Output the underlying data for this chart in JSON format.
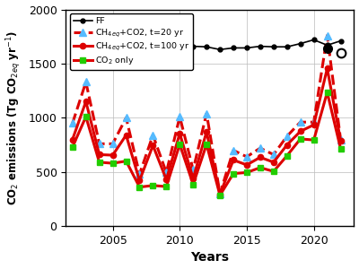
{
  "years": [
    2002,
    2003,
    2004,
    2005,
    2006,
    2007,
    2008,
    2009,
    2010,
    2011,
    2012,
    2013,
    2014,
    2015,
    2016,
    2017,
    2018,
    2019,
    2020,
    2021,
    2022
  ],
  "FF": [
    1720,
    1760,
    1690,
    1670,
    1575,
    1595,
    1630,
    1650,
    1680,
    1660,
    1655,
    1630,
    1645,
    1645,
    1660,
    1655,
    1655,
    1685,
    1720,
    1670,
    1710
  ],
  "CH4_t20": [
    950,
    1330,
    760,
    760,
    1000,
    480,
    840,
    495,
    1010,
    520,
    1040,
    300,
    700,
    640,
    720,
    660,
    830,
    960,
    960,
    1760,
    800
  ],
  "CH4_t100": [
    800,
    1150,
    660,
    655,
    840,
    420,
    745,
    430,
    855,
    440,
    870,
    295,
    610,
    565,
    635,
    590,
    750,
    875,
    935,
    1455,
    790
  ],
  "CO2_only": [
    730,
    1010,
    590,
    580,
    600,
    360,
    375,
    365,
    755,
    385,
    755,
    285,
    485,
    495,
    540,
    505,
    650,
    805,
    795,
    1235,
    715
  ],
  "FF_open_circle_year": 2022,
  "FF_open_circle_value": 1600,
  "FF_closed_circle_year": 2021,
  "FF_closed_circle_value": 1640,
  "xlabel": "Years",
  "ylabel": "CO$_2$ emissions (Tg CO$_{2eq}$ yr$^{-1}$)",
  "ylim": [
    0,
    2000
  ],
  "xlim": [
    2001.5,
    2023.0
  ],
  "yticks": [
    0,
    500,
    1000,
    1500,
    2000
  ],
  "xticks": [
    2005,
    2010,
    2015,
    2020
  ],
  "legend_FF": "FF",
  "legend_t20": "CH$_{4eq}$+CO2, t=20 yr",
  "legend_t100": "CH$_{4eq}$+CO2, t=100 yr",
  "legend_co2": "CO$_2$ only",
  "color_FF": "#000000",
  "color_t20": "#55bbff",
  "color_red": "#dd0000",
  "color_co2": "#22cc00",
  "grid_color": "#bbbbbb"
}
